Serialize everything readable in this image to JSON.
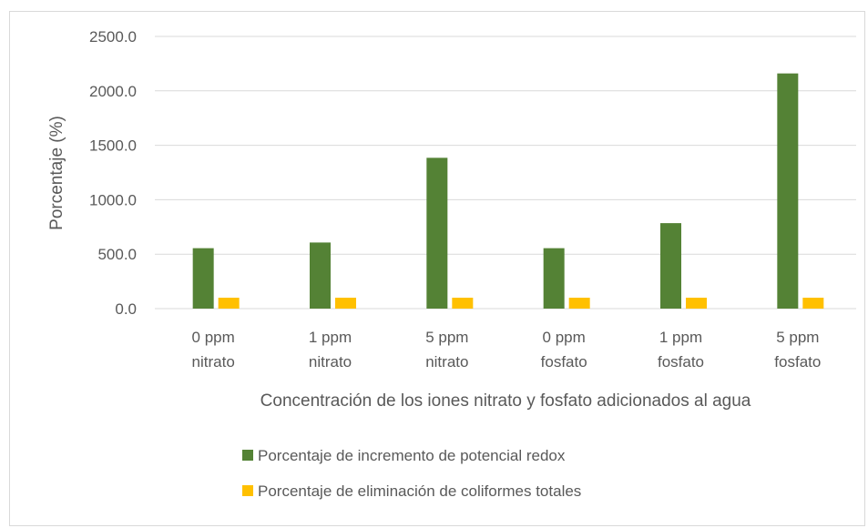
{
  "chart_data": {
    "type": "bar",
    "categories": [
      [
        "0 ppm",
        "nitrato"
      ],
      [
        "1 ppm",
        "nitrato"
      ],
      [
        "5 ppm",
        "nitrato"
      ],
      [
        "0 ppm",
        "fosfato"
      ],
      [
        "1 ppm",
        "fosfato"
      ],
      [
        "5 ppm",
        "fosfato"
      ]
    ],
    "series": [
      {
        "name": "Porcentaje de incremento de potencial redox",
        "color": "#548235",
        "values": [
          555,
          607,
          1385,
          555,
          785,
          2160
        ]
      },
      {
        "name": "Porcentaje de eliminación de coliformes totales",
        "color": "#ffc000",
        "values": [
          100,
          100,
          100,
          100,
          100,
          100
        ]
      }
    ],
    "xlabel": "Concentración de los iones nitrato y fosfato adicionados al agua",
    "ylabel": "Porcentaje (%)",
    "ylim": [
      0,
      2500
    ],
    "yticks": [
      "0.0",
      "500.0",
      "1000.0",
      "1500.0",
      "2000.0",
      "2500.0"
    ],
    "grid": true,
    "legend_position": "bottom"
  }
}
